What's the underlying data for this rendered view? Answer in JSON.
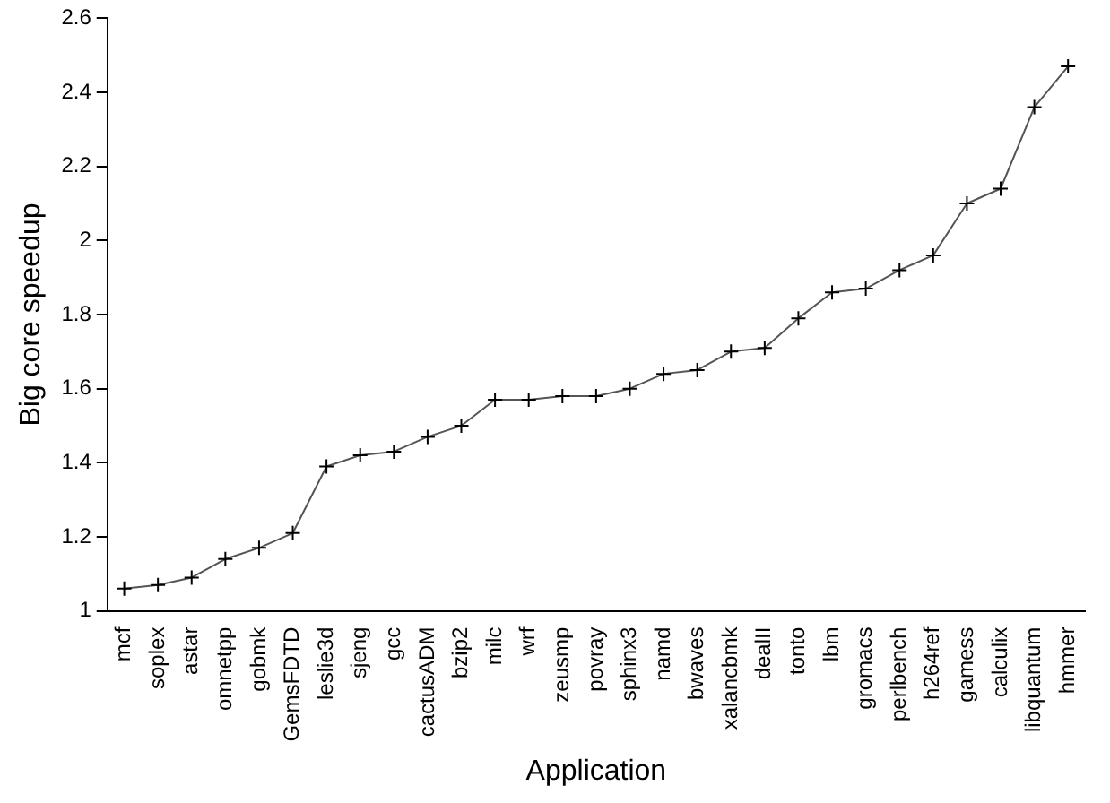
{
  "chart_data": {
    "type": "line",
    "xlabel": "Application",
    "ylabel": "Big core speedup",
    "categories": [
      "mcf",
      "soplex",
      "astar",
      "omnetpp",
      "gobmk",
      "GemsFDTD",
      "leslie3d",
      "sjeng",
      "gcc",
      "cactusADM",
      "bzip2",
      "milc",
      "wrf",
      "zeusmp",
      "povray",
      "sphinx3",
      "namd",
      "bwaves",
      "xalancbmk",
      "dealII",
      "tonto",
      "lbm",
      "gromacs",
      "perlbench",
      "h264ref",
      "gamess",
      "calculix",
      "libquantum",
      "hmmer"
    ],
    "series": [
      {
        "color": "#555555",
        "values": [
          1.06,
          1.07,
          1.09,
          1.14,
          1.17,
          1.21,
          1.39,
          1.42,
          1.43,
          1.47,
          1.5,
          1.57,
          1.57,
          1.58,
          1.58,
          1.6,
          1.64,
          1.65,
          1.7,
          1.71,
          1.79,
          1.86,
          1.87,
          1.92,
          1.96,
          2.1,
          2.14,
          2.36,
          2.47
        ]
      }
    ],
    "ylim": [
      1,
      2.6
    ],
    "yticks": [
      1,
      1.2,
      1.4,
      1.6,
      1.8,
      2,
      2.2,
      2.4,
      2.6
    ],
    "grid": false,
    "legend": false,
    "marker": "cross",
    "line_style": "solid"
  }
}
